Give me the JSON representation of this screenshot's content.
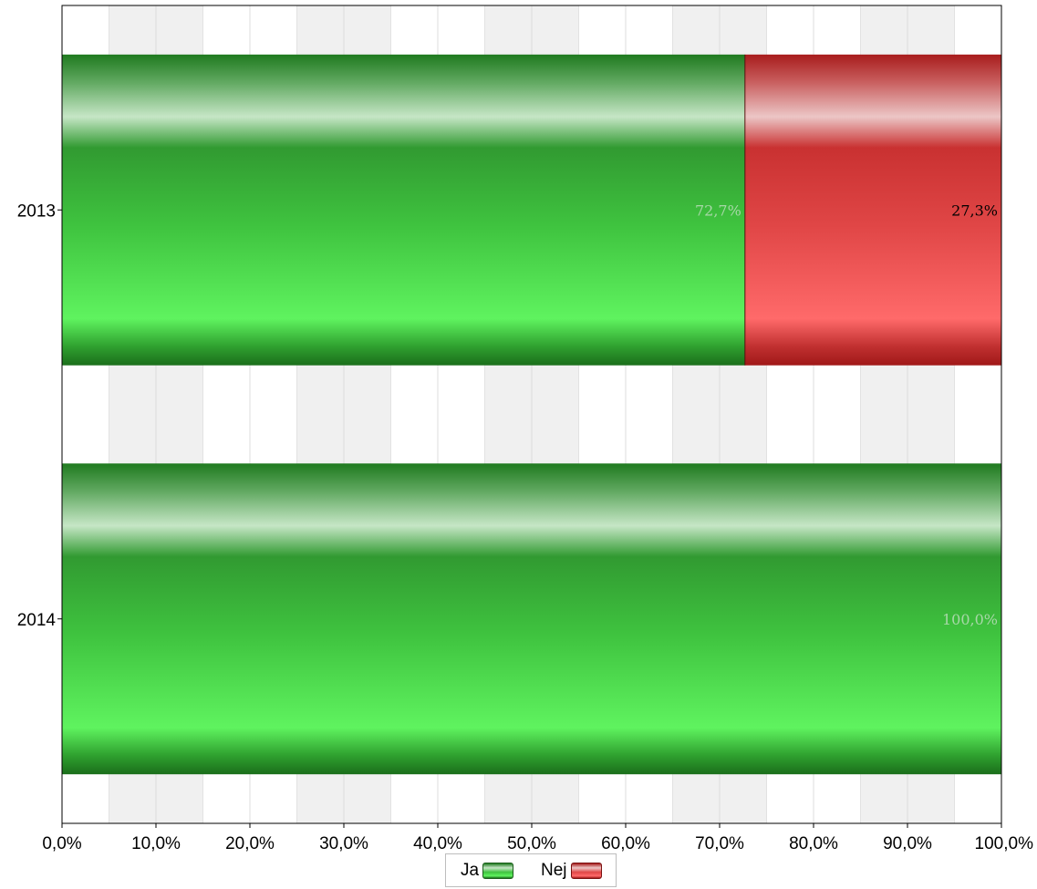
{
  "chart_data": {
    "type": "bar",
    "orientation": "horizontal",
    "stacked": "percent",
    "categories": [
      "2013",
      "2014"
    ],
    "series": [
      {
        "name": "Ja",
        "values": [
          72.7,
          100.0
        ],
        "labels": [
          "72,7%",
          "100,0%"
        ]
      },
      {
        "name": "Nej",
        "values": [
          27.3,
          0.0
        ],
        "labels": [
          "27,3%",
          ""
        ]
      }
    ],
    "xlim": [
      0,
      100
    ],
    "x_ticks": [
      "0,0%",
      "10,0%",
      "20,0%",
      "30,0%",
      "40,0%",
      "50,0%",
      "60,0%",
      "70,0%",
      "80,0%",
      "90,0%",
      "100,0%"
    ],
    "grid": "alternating vertical bands",
    "legend_position": "bottom-center"
  },
  "colors": {
    "Ja": "#3cbf3c",
    "Nej": "#e04848",
    "grid_band": "#f0f0f0",
    "ja_label": "#a8d8a8",
    "nej_label": "#000000"
  }
}
